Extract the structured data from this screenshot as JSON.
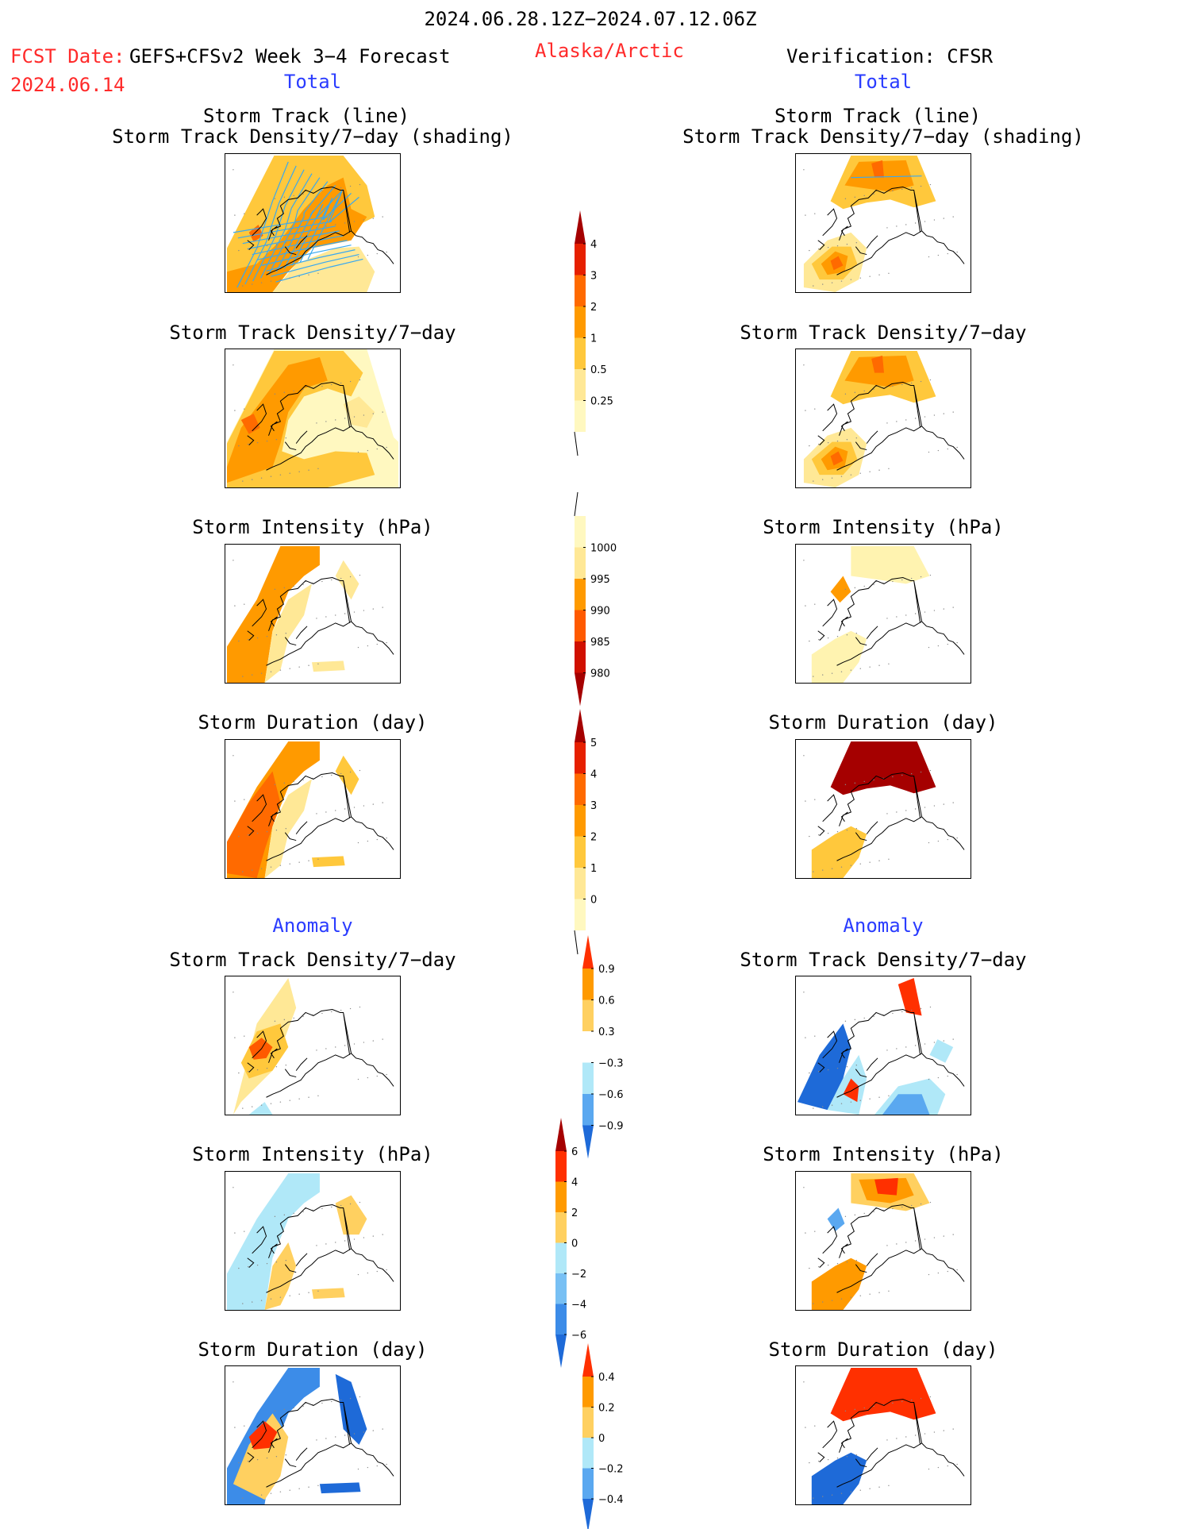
{
  "header": {
    "period": "2024.06.28.12Z−2024.07.12.06Z",
    "fcst_label": "FCST Date:",
    "forecast_source": "GEFS+CFSv2 Week 3−4 Forecast",
    "region": "Alaska/Arctic",
    "verification": "Verification: CFSR",
    "fcst_date": "2024.06.14"
  },
  "sections": {
    "total_left": "Total",
    "total_right": "Total",
    "anomaly_left": "Anomaly",
    "anomaly_right": "Anomaly"
  },
  "titles": {
    "track_line": "Storm Track (line)",
    "track_shading": "Storm Track Density/7−day (shading)",
    "density": "Storm Track Density/7−day",
    "intensity": "Storm Intensity (hPa)",
    "duration": "Storm Duration (day)"
  },
  "colorbars": {
    "density_total": {
      "ticks": [
        "4",
        "3",
        "2",
        "1",
        "0.5",
        "0.25"
      ],
      "colors": [
        "#a50000",
        "#e62000",
        "#ff6a00",
        "#ff9a00",
        "#ffc83c",
        "#ffe896",
        "#fff8c0"
      ]
    },
    "intensity_total": {
      "ticks": [
        "1000",
        "995",
        "990",
        "985",
        "980"
      ],
      "colors": [
        "#fff8c0",
        "#ffe896",
        "#ff9a00",
        "#ff5a00",
        "#d01000",
        "#a50000"
      ]
    },
    "duration_total": {
      "ticks": [
        "5",
        "4",
        "3",
        "2",
        "1",
        "0"
      ],
      "colors": [
        "#a50000",
        "#e62000",
        "#ff6a00",
        "#ff9a00",
        "#ffc83c",
        "#ffe896",
        "#fff8c0"
      ]
    },
    "density_anom": {
      "ticks": [
        "0.9",
        "0.6",
        "0.3",
        "−0.3",
        "−0.6",
        "−0.9"
      ],
      "colors": [
        "#ff3000",
        "#ff9a00",
        "#ffd060",
        "#ffffff",
        "#b0e8f8",
        "#5aa8f0",
        "#1e6ad8"
      ]
    },
    "intensity_anom": {
      "ticks": [
        "6",
        "4",
        "2",
        "0",
        "−2",
        "−4",
        "−6"
      ],
      "colors": [
        "#a50000",
        "#ff3000",
        "#ff9a00",
        "#ffd060",
        "#b0e8f8",
        "#78c0f4",
        "#3c8ce8",
        "#1e6ad8"
      ]
    },
    "duration_anom": {
      "ticks": [
        "0.4",
        "0.2",
        "0",
        "−0.2",
        "−0.4"
      ],
      "colors": [
        "#ff3000",
        "#ff9a00",
        "#ffd060",
        "#b0e8f8",
        "#5aa8f0",
        "#1e6ad8"
      ]
    }
  }
}
